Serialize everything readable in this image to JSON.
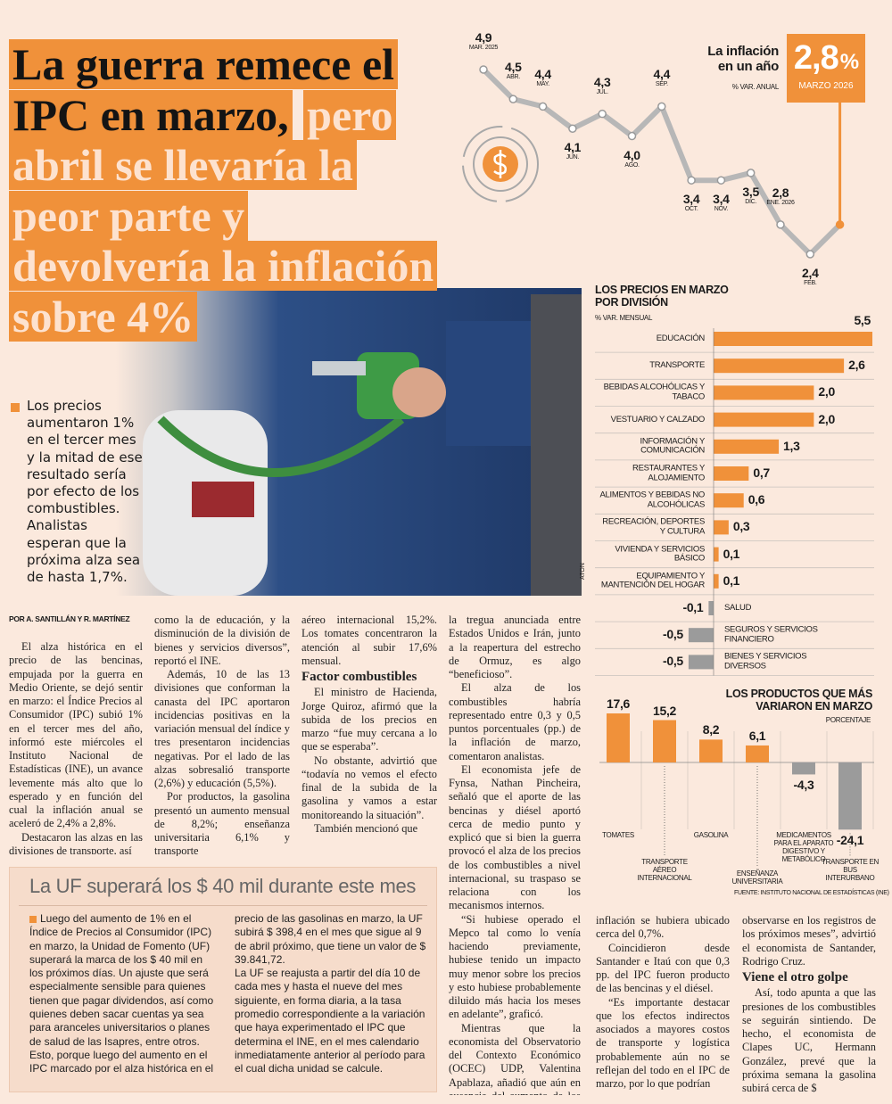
{
  "headline": {
    "lead_part": "La guerra remece el IPC en marzo,",
    "highlight_part": "pero abril se llevaría la peor parte y devolvería la inflación sobre 4%"
  },
  "summary": "Los precios aumentaron 1% en el tercer mes y la mitad de ese resultado sería por efecto de los combustibles. Analistas esperan que la próxima alza sea de hasta 1,7%.",
  "photo_credit": "ATON",
  "byline": "POR A. SANTILLÁN Y R. MARTÍNEZ",
  "article": {
    "columns": [
      [
        {
          "text": "El alza histórica en el precio de las bencinas, empujada por la guerra en Medio Oriente, se dejó sentir en marzo: el Índice Precios al Consumidor (IPC) subió 1% en el tercer mes del año, informó este miércoles el Instituto Nacional de Estadísticas (INE), un avance levemente más alto que lo esperado y en función del cual la inflación anual se aceleró de 2,4% a 2,8%."
        },
        {
          "text": "Destacaron las alzas en las divisiones de transporte, así"
        }
      ],
      [
        {
          "text": "como la de educación, y la disminución de la división de bienes y servicios diversos”, reportó el INE."
        },
        {
          "text": "Además, 10 de las 13 divisiones que conforman la canasta del IPC aportaron incidencias positivas en la variación mensual del índice y tres presentaron incidencias negativas. Por el lado de las alzas sobresalió transporte (2,6%) y educación (5,5%)."
        },
        {
          "text": "Por productos, la gasolina presentó un aumento mensual de 8,2%; enseñanza universitaria 6,1% y transporte"
        }
      ],
      [
        {
          "text": "aéreo internacional 15,2%. Los tomates concentraron la atención al subir 17,6% mensual."
        },
        {
          "subhead": "Factor combustibles"
        },
        {
          "text": "El ministro de Hacienda, Jorge Quiroz, afirmó que la subida de los precios en marzo “fue muy cercana a lo que se esperaba”."
        },
        {
          "text": "No obstante, advirtió que “todavía no vemos el efecto final de la subida de la gasolina y vamos a estar monitoreando la situación”."
        },
        {
          "text": "También mencionó que"
        }
      ],
      [
        {
          "text": "la tregua anunciada entre Estados Unidos e Irán, junto a la reapertura del estrecho de Ormuz, es algo “beneficioso”."
        },
        {
          "text": "El alza de los combustibles habría representado entre 0,3 y 0,5 puntos porcentuales (pp.) de la inflación de marzo, comentaron analistas."
        },
        {
          "text": "El economista jefe de Fynsa, Nathan Pincheira, señaló que el aporte de las bencinas y diésel aportó cerca de medio punto y explicó que si bien la guerra provocó el alza de los precios de los combustibles a nivel internacional, su traspaso se relaciona con los mecanismos internos."
        },
        {
          "text": "“Si hubiese operado el Mepco tal como lo venía haciendo previamente, hubiese tenido un impacto muy menor sobre los precios y esto hubiese probablemente diluido más hacia los meses en adelante”, graficó."
        },
        {
          "text": "Mientras que la economista del Observatorio del Contexto Económico (OCEC) UDP, Valentina Apablaza, añadió que aún en ausencia del aumento de los combustibles para vehículos personales, la"
        }
      ],
      [
        {
          "text": "inflación se hubiera ubicado cerca del 0,7%."
        },
        {
          "text": "Coincidieron desde Santander e Itaú con que 0,3 pp. del IPC fueron producto de las bencinas y el diésel."
        },
        {
          "text": "“Es importante destacar que los efectos indirectos asociados a mayores costos de transporte y logística probablemente aún no se reflejan del todo en el IPC de marzo, por lo que podrían"
        }
      ],
      [
        {
          "text": "observarse en los registros de los próximos meses”, advirtió el economista de Santander, Rodrigo Cruz."
        },
        {
          "subhead": "Viene el otro golpe"
        },
        {
          "text": "Así, todo apunta a que las presiones de los combustibles se seguirán sintiendo. De hecho, el economista de Clapes UC, Hermann González, prevé que la próxima semana la gasolina subirá cerca de $"
        }
      ]
    ]
  },
  "box": {
    "title": "La UF superará los $ 40 mil durante este mes",
    "columns": [
      [
        {
          "text": "Luego del aumento de 1% en el Índice de Precios al Consumidor (IPC) en marzo, la Unidad de Fomento (UF) superará la marca de los $ 40 mil en los próximos días. Un ajuste que será especialmente sensible para quienes tienen que pagar dividendos, así como quienes deben sacar cuentas ya sea para aranceles universitarios o planes de salud de las Isapres, entre otros. Esto, porque luego del aumento en el IPC marcado por el alza histórica en el"
        }
      ],
      [
        {
          "text": "precio de las gasolinas en marzo, la UF subirá $ 398,4 en el mes que sigue al 9 de abril próximo, que tiene un valor de $ 39.841,72."
        },
        {
          "text": "La UF se reajusta a partir del día 10 de cada mes y hasta el nueve del mes siguiente, en forma diaria, a la tasa promedio correspondiente a la variación que haya experimentado el IPC que determina el INE, en el mes calendario inmediatamente anterior al período para el cual dicha unidad se calcule."
        }
      ]
    ]
  },
  "chart_data": [
    {
      "type": "line",
      "title": "La inflación en un año",
      "subtitle": "% VAR. ANUAL",
      "categories": [
        "MAR. 2025",
        "ABR.",
        "MAY.",
        "JUN.",
        "JUL.",
        "AGO.",
        "SEP.",
        "OCT.",
        "NOV.",
        "DIC.",
        "ENE. 2026",
        "FEB.",
        "MARZO 2026"
      ],
      "values": [
        4.9,
        4.5,
        4.4,
        4.1,
        4.3,
        4.0,
        4.4,
        3.4,
        3.4,
        3.5,
        2.8,
        2.4,
        2.8
      ],
      "value_labels": [
        "4,9",
        "4,5",
        "4,4",
        "4,1",
        "4,3",
        "4,0",
        "4,4",
        "3,4",
        "3,4",
        "3,5",
        "2,8",
        "2,4",
        "2,8"
      ],
      "unit": "%",
      "color": "#b7b7b7",
      "accent_color": "#f0913a"
    },
    {
      "type": "barh",
      "title": "LOS PRECIOS EN MARZO POR DIVISIÓN",
      "subtitle": "% VAR. MENSUAL",
      "categories": [
        "EDUCACIÓN",
        "TRANSPORTE",
        "BEBIDAS ALCOHÓLICAS Y TABACO",
        "VESTUARIO Y CALZADO",
        "INFORMACIÓN Y COMUNICACIÓN",
        "RESTAURANTES Y ALOJAMIENTO",
        "ALIMENTOS Y BEBIDAS NO ALCOHÓLICAS",
        "RECREACIÓN, DEPORTES Y CULTURA",
        "VIVIENDA Y SERVICIOS BÁSICO",
        "EQUIPAMIENTO Y MANTENCIÓN DEL HOGAR",
        "SALUD",
        "SEGUROS Y SERVICIOS FINANCIERO",
        "BIENES Y SERVICIOS DIVERSOS"
      ],
      "values": [
        5.5,
        2.6,
        2.0,
        2.0,
        1.3,
        0.7,
        0.6,
        0.3,
        0.1,
        0.1,
        -0.1,
        -0.5,
        -0.5
      ],
      "value_labels": [
        "5,5",
        "2,6",
        "2,0",
        "2,0",
        "1,3",
        "0,7",
        "0,6",
        "0,3",
        "0,1",
        "0,1",
        "-0,1",
        "-0,5",
        "-0,5"
      ],
      "positive_color": "#f0913a",
      "negative_color": "#9b9b9b"
    },
    {
      "type": "bar",
      "title": "LOS PRODUCTOS QUE MÁS VARIARON EN MARZO",
      "subtitle": "PORCENTAJE",
      "categories": [
        "TOMATES",
        "TRANSPORTE AÉREO INTERNACIONAL",
        "GASOLINA",
        "ENSEÑANZA UNIVERSITARIA",
        "MEDICAMENTOS PARA EL APARATO DIGESTIVO Y METABÓLICO",
        "TRANSPORTE EN BUS INTERURBANO"
      ],
      "values": [
        17.6,
        15.2,
        8.2,
        6.1,
        -4.3,
        -24.1
      ],
      "value_labels": [
        "17,6",
        "15,2",
        "8,2",
        "6,1",
        "-4,3",
        "-24,1"
      ],
      "positive_color": "#f0913a",
      "negative_color": "#9b9b9b",
      "source": "FUENTE: INSTITUTO NACIONAL DE ESTADÍSTICAS (INE)"
    }
  ]
}
